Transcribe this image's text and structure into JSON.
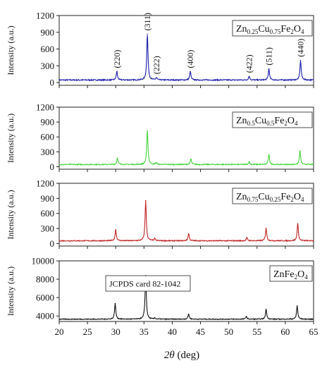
{
  "figure": {
    "xlabel_italic": "2θ",
    "xlabel_rest": " (deg)",
    "xticks": [
      20,
      25,
      30,
      35,
      40,
      45,
      50,
      55,
      60,
      65
    ]
  },
  "chart_data": [
    {
      "type": "line",
      "title": "",
      "xlabel": "",
      "ylabel": "Intensity (a.u.)",
      "xlim": [
        20,
        65
      ],
      "ylim": [
        -50,
        1200
      ],
      "yticks": [
        0,
        300,
        600,
        900,
        1200
      ],
      "color": "#1a1aa8",
      "legend": {
        "base": "Zn",
        "sub1": "0.25",
        "mid": "Cu",
        "sub2": "0.75",
        "tail": "Fe",
        "sub3": "2",
        "tail2": "O",
        "sub4": "4"
      },
      "baseline": 45,
      "noise": 10,
      "peaks": [
        {
          "x": 30.2,
          "height": 150,
          "label": "(220)"
        },
        {
          "x": 35.6,
          "height": 820,
          "label": "(311)"
        },
        {
          "x": 37.2,
          "height": 40,
          "label": "(222)"
        },
        {
          "x": 43.2,
          "height": 150,
          "label": "(400)"
        },
        {
          "x": 53.6,
          "height": 65,
          "label": "(422)"
        },
        {
          "x": 57.1,
          "height": 200,
          "label": "(511)"
        },
        {
          "x": 62.7,
          "height": 350,
          "label": "(440)"
        }
      ]
    },
    {
      "type": "line",
      "title": "",
      "xlabel": "",
      "ylabel": "Intensity (a.u.)",
      "xlim": [
        20,
        65
      ],
      "ylim": [
        -50,
        1200
      ],
      "yticks": [
        0,
        300,
        600,
        900,
        1200
      ],
      "color": "#44d63a",
      "legend": {
        "base": "Zn",
        "sub1": "0.5",
        "mid": "Cu",
        "sub2": "0.5",
        "tail": "Fe",
        "sub3": "2",
        "tail2": "O",
        "sub4": "4"
      },
      "baseline": 45,
      "noise": 10,
      "peaks": [
        {
          "x": 30.3,
          "height": 130
        },
        {
          "x": 35.6,
          "height": 680
        },
        {
          "x": 37.2,
          "height": 35
        },
        {
          "x": 43.3,
          "height": 110
        },
        {
          "x": 53.6,
          "height": 50
        },
        {
          "x": 57.1,
          "height": 200
        },
        {
          "x": 62.6,
          "height": 270
        }
      ]
    },
    {
      "type": "line",
      "title": "",
      "xlabel": "",
      "ylabel": "Intensity (a.u.)",
      "xlim": [
        20,
        65
      ],
      "ylim": [
        -50,
        1200
      ],
      "yticks": [
        0,
        300,
        600,
        900,
        1200
      ],
      "color": "#c02424",
      "legend": {
        "base": "Zn",
        "sub1": "0.75",
        "mid": "Cu",
        "sub2": "0.25",
        "tail": "Fe",
        "sub3": "2",
        "tail2": "O",
        "sub4": "4"
      },
      "baseline": 55,
      "noise": 10,
      "peaks": [
        {
          "x": 30.0,
          "height": 220
        },
        {
          "x": 35.3,
          "height": 800
        },
        {
          "x": 36.9,
          "height": 40
        },
        {
          "x": 42.9,
          "height": 140
        },
        {
          "x": 53.2,
          "height": 60
        },
        {
          "x": 56.6,
          "height": 250
        },
        {
          "x": 62.2,
          "height": 340
        }
      ]
    },
    {
      "type": "line",
      "title": "",
      "xlabel": "",
      "ylabel": "Intensity (a.u.)",
      "xlim": [
        20,
        65
      ],
      "ylim": [
        3400,
        10000
      ],
      "yticks": [
        4000,
        6000,
        8000,
        10000
      ],
      "color": "#111111",
      "legend": {
        "base": "ZnFe",
        "sub1": "2",
        "mid": "O",
        "sub2": "4",
        "tail": "",
        "sub3": "",
        "tail2": "",
        "sub4": ""
      },
      "annotation": "JCPDS card 82-1042",
      "baseline": 3650,
      "noise": 45,
      "peaks": [
        {
          "x": 29.9,
          "height": 1700
        },
        {
          "x": 35.3,
          "height": 4750
        },
        {
          "x": 36.9,
          "height": 120
        },
        {
          "x": 42.9,
          "height": 550
        },
        {
          "x": 53.1,
          "height": 300
        },
        {
          "x": 56.6,
          "height": 1050
        },
        {
          "x": 62.1,
          "height": 1450
        }
      ]
    }
  ]
}
